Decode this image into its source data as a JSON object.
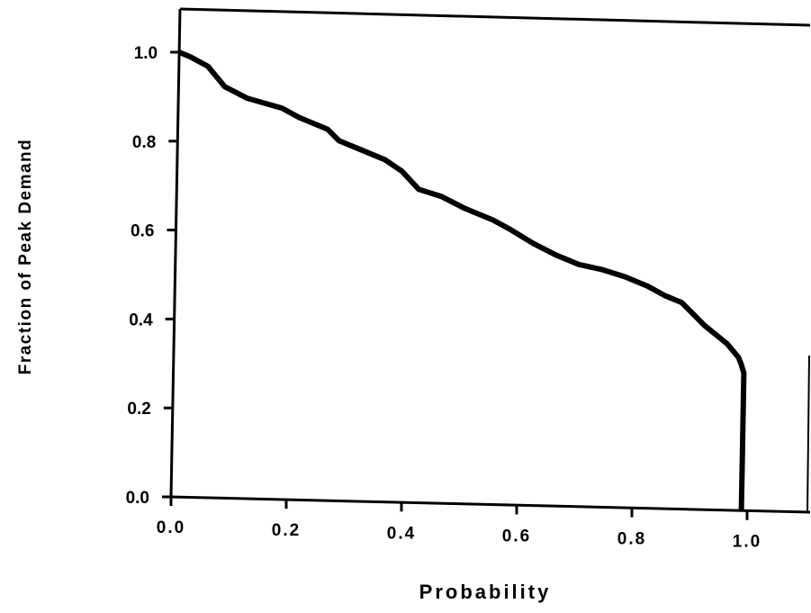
{
  "chart_data": {
    "type": "line",
    "title": "",
    "xlabel": "Probability",
    "ylabel": "Fraction of Peak Demand",
    "xlim": [
      0.0,
      1.1
    ],
    "ylim": [
      0.0,
      1.1
    ],
    "xticks": [
      0.0,
      0.2,
      0.4,
      0.6,
      0.8,
      1.0
    ],
    "yticks": [
      0.0,
      0.2,
      0.4,
      0.6,
      0.8,
      1.0
    ],
    "xtick_labels": [
      "0.0",
      "0.2",
      "0.4",
      "0.6",
      "0.8",
      "1.0"
    ],
    "ytick_labels": [
      "0.0",
      "0.2",
      "0.4",
      "0.6",
      "0.8",
      "1.0"
    ],
    "grid": false,
    "legend": "none",
    "line_color": "#000000",
    "series": [
      {
        "x": [
          0.0,
          0.02,
          0.05,
          0.08,
          0.12,
          0.18,
          0.21,
          0.26,
          0.28,
          0.32,
          0.36,
          0.39,
          0.42,
          0.46,
          0.5,
          0.55,
          0.58,
          0.62,
          0.66,
          0.7,
          0.74,
          0.78,
          0.82,
          0.85,
          0.88,
          0.9,
          0.92,
          0.94,
          0.96,
          0.97,
          0.98,
          0.985,
          0.99,
          0.99,
          0.99
        ],
        "y": [
          1.0,
          0.99,
          0.97,
          0.925,
          0.9,
          0.88,
          0.86,
          0.835,
          0.81,
          0.79,
          0.77,
          0.745,
          0.705,
          0.69,
          0.665,
          0.64,
          0.62,
          0.59,
          0.565,
          0.545,
          0.535,
          0.52,
          0.5,
          0.48,
          0.465,
          0.44,
          0.415,
          0.395,
          0.375,
          0.36,
          0.345,
          0.33,
          0.31,
          0.15,
          0.0
        ]
      }
    ]
  }
}
